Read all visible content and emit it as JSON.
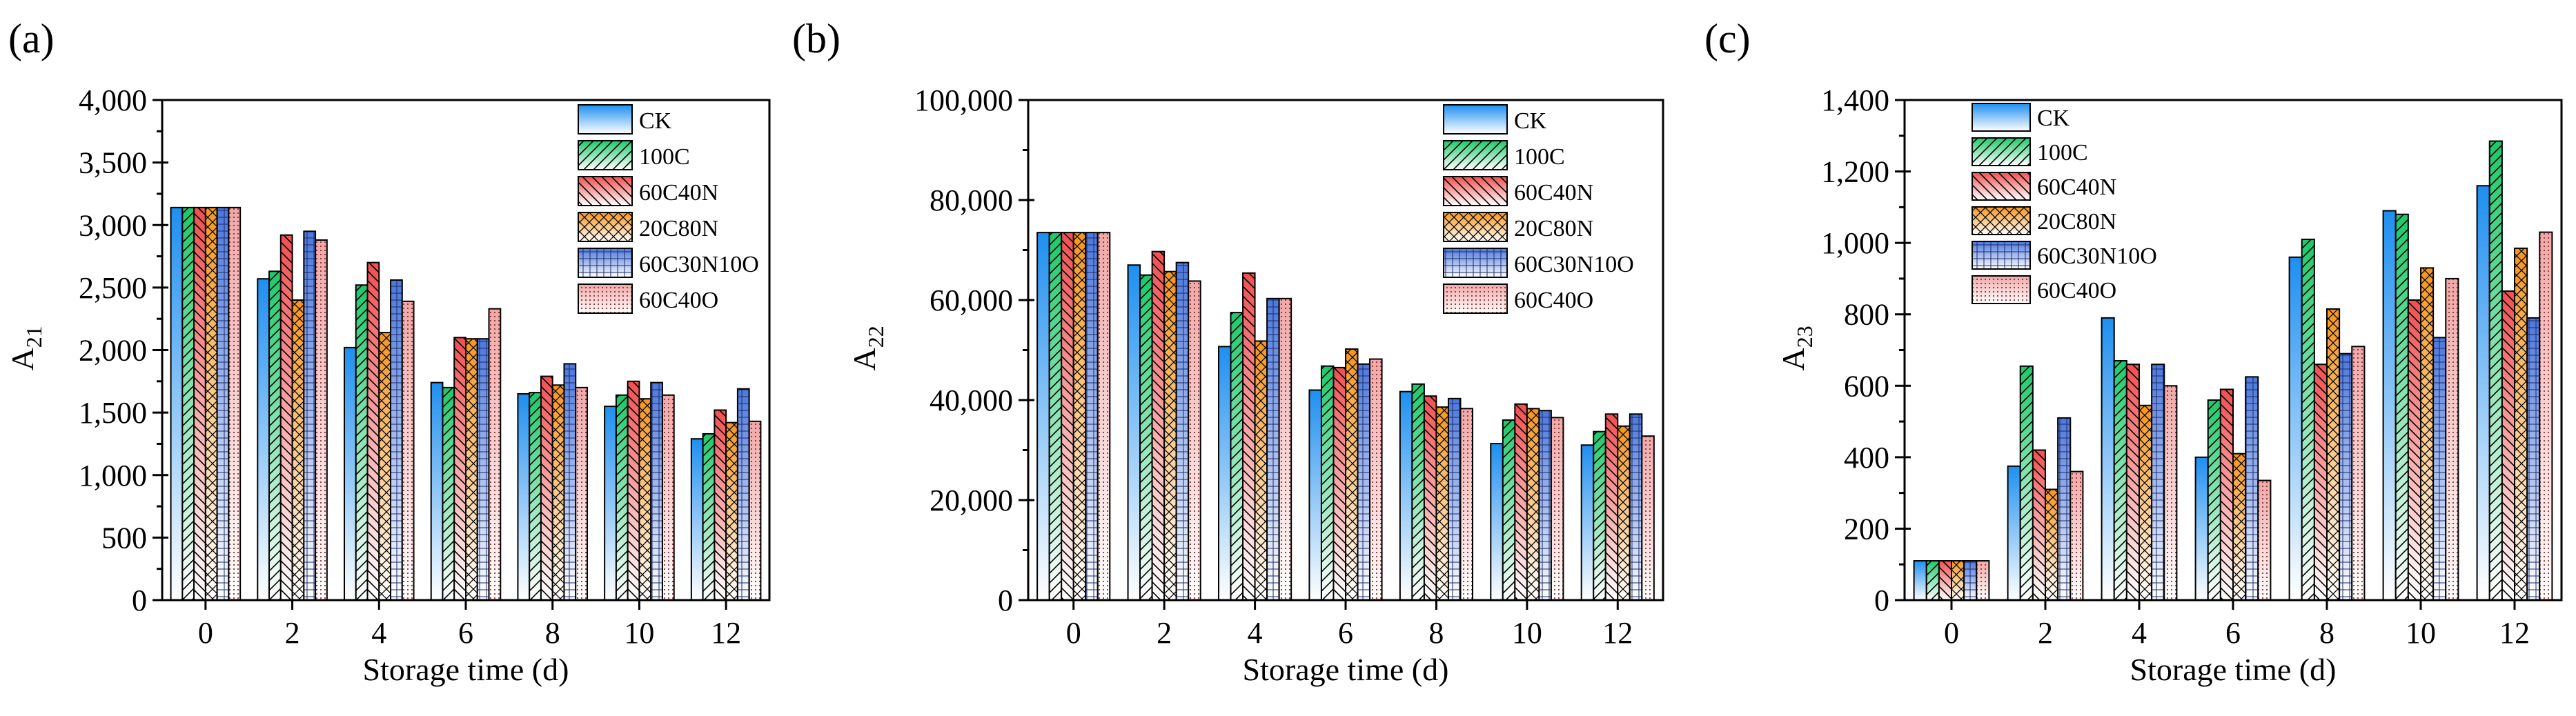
{
  "figure": {
    "description_labels": [
      "(a)",
      "(b)",
      "(c)"
    ]
  },
  "legend_series": [
    {
      "name": "CK",
      "color": "#1e8ff0"
    },
    {
      "name": "100C",
      "color": "#1ec86a"
    },
    {
      "name": "60C40N",
      "color": "#f05050"
    },
    {
      "name": "20C80N",
      "color": "#f5961e"
    },
    {
      "name": "60C30N10O",
      "color": "#4b78dc"
    },
    {
      "name": "60C40O",
      "color": "#f0a8a8"
    }
  ],
  "chart_data": [
    {
      "type": "bar",
      "panel": "(a)",
      "title": "",
      "xlabel": "Storage time (d)",
      "ylabel": "A21",
      "ylabel_main": "A",
      "ylabel_sub": "21",
      "categories": [
        "0",
        "2",
        "4",
        "6",
        "8",
        "10",
        "12"
      ],
      "ylim": [
        0,
        4000
      ],
      "yticks": [
        0,
        500,
        1000,
        1500,
        2000,
        2500,
        3000,
        3500,
        4000
      ],
      "ytick_labels": [
        "0",
        "500",
        "1,000",
        "1,500",
        "2,000",
        "2,500",
        "3,000",
        "3,500",
        "4,000"
      ],
      "series": [
        {
          "name": "CK",
          "values": [
            3140,
            2570,
            2020,
            1740,
            1650,
            1550,
            1290
          ]
        },
        {
          "name": "100C",
          "values": [
            3140,
            2630,
            2520,
            1700,
            1660,
            1640,
            1330
          ]
        },
        {
          "name": "60C40N",
          "values": [
            3140,
            2920,
            2700,
            2100,
            1790,
            1750,
            1520
          ]
        },
        {
          "name": "20C80N",
          "values": [
            3140,
            2400,
            2140,
            2090,
            1720,
            1610,
            1420
          ]
        },
        {
          "name": "60C30N10O",
          "values": [
            3140,
            2950,
            2560,
            2090,
            1890,
            1740,
            1690
          ]
        },
        {
          "name": "60C40O",
          "values": [
            3140,
            2880,
            2390,
            2330,
            1700,
            1640,
            1430
          ]
        }
      ]
    },
    {
      "type": "bar",
      "panel": "(b)",
      "title": "",
      "xlabel": "Storage time (d)",
      "ylabel": "A22",
      "ylabel_main": "A",
      "ylabel_sub": "22",
      "categories": [
        "0",
        "2",
        "4",
        "6",
        "8",
        "10",
        "12"
      ],
      "ylim": [
        0,
        100000
      ],
      "yticks": [
        0,
        20000,
        40000,
        60000,
        80000,
        100000
      ],
      "ytick_labels": [
        "0",
        "20,000",
        "40,000",
        "60,000",
        "80,000",
        "100,000"
      ],
      "series": [
        {
          "name": "CK",
          "values": [
            73500,
            67000,
            50700,
            42000,
            41700,
            31300,
            31000
          ]
        },
        {
          "name": "100C",
          "values": [
            73500,
            65000,
            57500,
            46800,
            43200,
            36000,
            33700
          ]
        },
        {
          "name": "60C40N",
          "values": [
            73500,
            69700,
            65400,
            46500,
            40800,
            39200,
            37200
          ]
        },
        {
          "name": "20C80N",
          "values": [
            73500,
            65700,
            51800,
            50200,
            38600,
            38300,
            34800
          ]
        },
        {
          "name": "60C30N10O",
          "values": [
            73500,
            67500,
            60300,
            47200,
            40300,
            37900,
            37200
          ]
        },
        {
          "name": "60C40O",
          "values": [
            73500,
            63800,
            60300,
            48200,
            38300,
            36500,
            32800
          ]
        }
      ]
    },
    {
      "type": "bar",
      "panel": "(c)",
      "title": "",
      "xlabel": "Storage time (d)",
      "ylabel": "A23",
      "ylabel_main": "A",
      "ylabel_sub": "23",
      "categories": [
        "0",
        "2",
        "4",
        "6",
        "8",
        "10",
        "12"
      ],
      "ylim": [
        0,
        1400
      ],
      "yticks": [
        0,
        200,
        400,
        600,
        800,
        1000,
        1200,
        1400
      ],
      "ytick_labels": [
        "0",
        "200",
        "400",
        "600",
        "800",
        "1,000",
        "1,200",
        "1,400"
      ],
      "series": [
        {
          "name": "CK",
          "values": [
            110,
            375,
            790,
            400,
            960,
            1090,
            1160
          ]
        },
        {
          "name": "100C",
          "values": [
            110,
            655,
            670,
            560,
            1010,
            1080,
            1285
          ]
        },
        {
          "name": "60C40N",
          "values": [
            110,
            420,
            660,
            590,
            660,
            840,
            865
          ]
        },
        {
          "name": "20C80N",
          "values": [
            110,
            310,
            545,
            410,
            815,
            930,
            985
          ]
        },
        {
          "name": "60C30N10O",
          "values": [
            110,
            510,
            660,
            625,
            690,
            735,
            790
          ]
        },
        {
          "name": "60C40O",
          "values": [
            110,
            360,
            600,
            335,
            710,
            900,
            1030
          ]
        }
      ]
    }
  ]
}
